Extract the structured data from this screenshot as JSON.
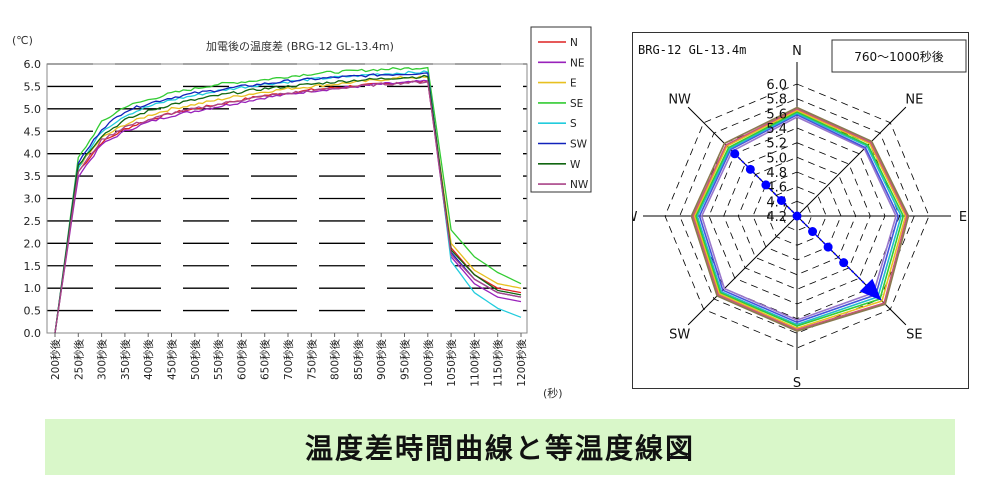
{
  "caption": "温度差時間曲線と等温度線図",
  "chart_data": [
    {
      "type": "line",
      "title": "加電後の温度差 (BRG-12 GL-13.4m)",
      "ylabel": "(℃)",
      "xlabel": "(秒)",
      "ylim": [
        0,
        6.0
      ],
      "yticks": [
        "0.0",
        "0.5",
        "1.0",
        "1.5",
        "2.0",
        "2.5",
        "3.0",
        "3.5",
        "4.0",
        "4.5",
        "5.0",
        "5.5",
        "6.0"
      ],
      "categories": [
        "200秒後",
        "250秒後",
        "300秒後",
        "350秒後",
        "400秒後",
        "450秒後",
        "500秒後",
        "550秒後",
        "600秒後",
        "650秒後",
        "700秒後",
        "750秒後",
        "800秒後",
        "850秒後",
        "900秒後",
        "950秒後",
        "1000秒後",
        "1050秒後",
        "1100秒後",
        "1150秒後",
        "1200秒後"
      ],
      "legend_position": "right",
      "grid": true,
      "series": [
        {
          "name": "N",
          "color": "#dd2222",
          "values": [
            0.0,
            3.6,
            4.25,
            4.55,
            4.75,
            4.9,
            5.0,
            5.1,
            5.2,
            5.3,
            5.35,
            5.42,
            5.47,
            5.52,
            5.55,
            5.6,
            5.6,
            1.9,
            1.3,
            1.0,
            0.9
          ]
        },
        {
          "name": "NE",
          "color": "#9922bb",
          "values": [
            0.0,
            3.5,
            4.2,
            4.5,
            4.7,
            4.85,
            4.95,
            5.05,
            5.15,
            5.25,
            5.32,
            5.4,
            5.45,
            5.5,
            5.55,
            5.58,
            5.62,
            1.7,
            1.1,
            0.8,
            0.7
          ]
        },
        {
          "name": "E",
          "color": "#e8c020",
          "values": [
            0.0,
            3.7,
            4.35,
            4.65,
            4.85,
            5.0,
            5.1,
            5.2,
            5.3,
            5.38,
            5.45,
            5.5,
            5.55,
            5.6,
            5.65,
            5.7,
            5.7,
            2.0,
            1.4,
            1.1,
            1.0
          ]
        },
        {
          "name": "SE",
          "color": "#33cc33",
          "values": [
            0.0,
            3.9,
            4.7,
            5.05,
            5.2,
            5.35,
            5.45,
            5.55,
            5.6,
            5.65,
            5.72,
            5.78,
            5.82,
            5.85,
            5.88,
            5.9,
            5.92,
            2.3,
            1.7,
            1.35,
            1.1
          ]
        },
        {
          "name": "S",
          "color": "#22ccdd",
          "values": [
            0.0,
            3.7,
            4.5,
            4.85,
            5.05,
            5.2,
            5.3,
            5.4,
            5.48,
            5.55,
            5.6,
            5.66,
            5.7,
            5.74,
            5.78,
            5.8,
            5.82,
            1.6,
            0.9,
            0.55,
            0.35
          ]
        },
        {
          "name": "SW",
          "color": "#1122bb",
          "values": [
            0.0,
            3.8,
            4.55,
            4.95,
            5.12,
            5.25,
            5.35,
            5.42,
            5.5,
            5.56,
            5.62,
            5.66,
            5.7,
            5.73,
            5.76,
            5.78,
            5.8,
            1.8,
            1.2,
            0.9,
            0.8
          ]
        },
        {
          "name": "W",
          "color": "#116611",
          "values": [
            0.0,
            3.75,
            4.4,
            4.75,
            4.95,
            5.1,
            5.2,
            5.3,
            5.38,
            5.45,
            5.5,
            5.55,
            5.6,
            5.64,
            5.67,
            5.7,
            5.72,
            1.85,
            1.3,
            0.95,
            0.85
          ]
        },
        {
          "name": "NW",
          "color": "#aa4488",
          "values": [
            0.0,
            3.6,
            4.3,
            4.6,
            4.75,
            4.9,
            5.0,
            5.1,
            5.2,
            5.28,
            5.35,
            5.4,
            5.45,
            5.5,
            5.55,
            5.58,
            5.6,
            1.75,
            1.2,
            0.9,
            0.8
          ]
        }
      ]
    },
    {
      "type": "radar",
      "title": "BRG-12 GL-13.4m",
      "annotation": "760～1000秒後",
      "axes": [
        "N",
        "NE",
        "E",
        "SE",
        "S",
        "SW",
        "W",
        "NW"
      ],
      "rlim": [
        4.2,
        6.0
      ],
      "rticks": [
        "4.2",
        "4.4",
        "4.6",
        "4.8",
        "5.0",
        "5.2",
        "5.4",
        "5.6",
        "5.8",
        "6.0"
      ],
      "series_values": [
        [
          5.55,
          5.5,
          5.55,
          5.68,
          5.62,
          5.6,
          5.5,
          5.45
        ],
        [
          5.58,
          5.52,
          5.58,
          5.72,
          5.65,
          5.63,
          5.53,
          5.48
        ],
        [
          5.6,
          5.55,
          5.62,
          5.76,
          5.68,
          5.66,
          5.56,
          5.5
        ],
        [
          5.62,
          5.57,
          5.65,
          5.8,
          5.7,
          5.68,
          5.58,
          5.52
        ],
        [
          5.64,
          5.6,
          5.68,
          5.84,
          5.73,
          5.7,
          5.6,
          5.55
        ],
        [
          5.66,
          5.62,
          5.7,
          5.88,
          5.75,
          5.72,
          5.62,
          5.57
        ],
        [
          5.68,
          5.64,
          5.72,
          5.9,
          5.77,
          5.74,
          5.64,
          5.6
        ]
      ],
      "series_colors": [
        "#9977cc",
        "#4455dd",
        "#22bbcc",
        "#33cc33",
        "#e8c020",
        "#cc5577",
        "#8a7a50"
      ],
      "arrow": {
        "from": "NW",
        "to": "SE",
        "color": "#0000ff",
        "dot_radii": [
          5.4,
          5.1,
          4.8,
          4.5,
          4.2,
          4.5,
          4.8,
          5.1
        ]
      }
    }
  ]
}
